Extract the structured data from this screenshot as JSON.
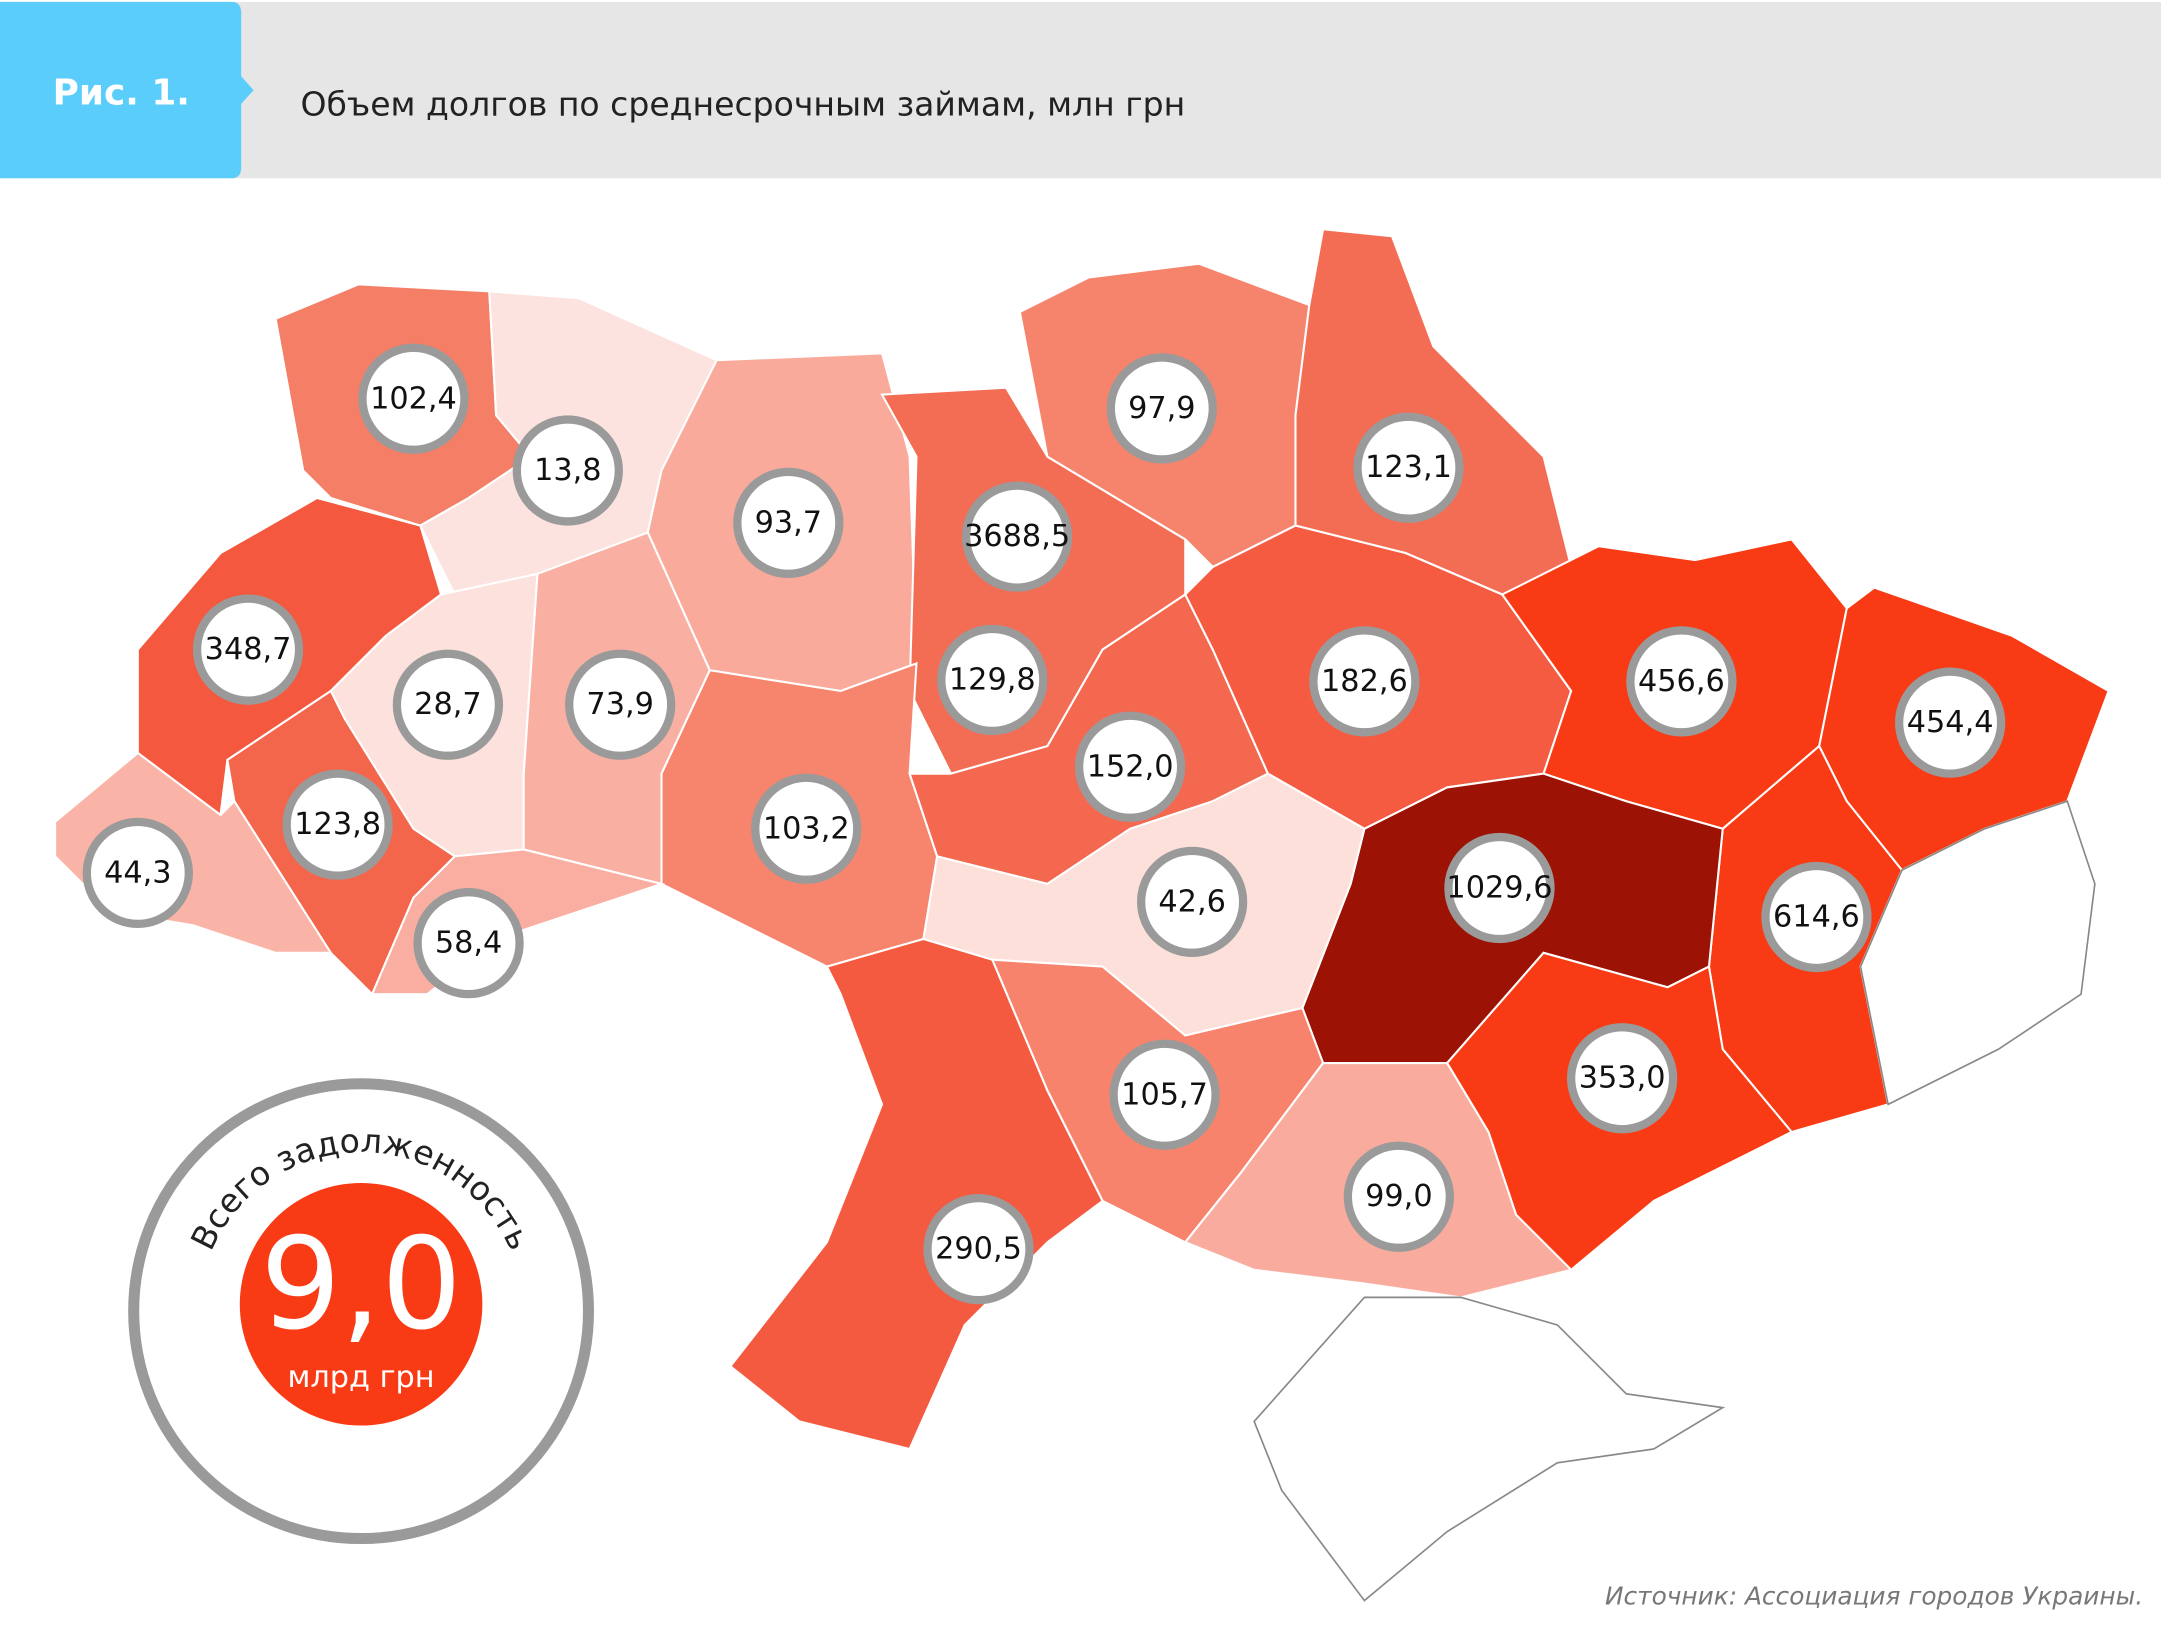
{
  "header": {
    "label": "Рис. 1.",
    "title": "Объем долгов по среднесрочным займам, млн грн"
  },
  "regions": [
    {
      "value": "102,4",
      "color": "#f47e66"
    },
    {
      "value": "13,8",
      "color": "#fde3df"
    },
    {
      "value": "93,7",
      "color": "#f9aa9a"
    },
    {
      "value": "129,8",
      "color": "#f36c54"
    },
    {
      "value": "3688,5",
      "color": "#ef5a40"
    },
    {
      "value": "97,9",
      "color": "#f6836b"
    },
    {
      "value": "123,1",
      "color": "#f36d55"
    },
    {
      "value": "348,7",
      "color": "#f4583e"
    },
    {
      "value": "28,7",
      "color": "#fde1dc"
    },
    {
      "value": "73,9",
      "color": "#f9b0a2"
    },
    {
      "value": "103,2",
      "color": "#f7846d"
    },
    {
      "value": "123,8",
      "color": "#f3664c"
    },
    {
      "value": "44,3",
      "color": "#f9b4a7"
    },
    {
      "value": "58,4",
      "color": "#f9aea1"
    },
    {
      "value": "152,0",
      "color": "#f3684f"
    },
    {
      "value": "182,6",
      "color": "#f45b41"
    },
    {
      "value": "456,6",
      "color": "#f93b15"
    },
    {
      "value": "454,4",
      "color": "#f93b15"
    },
    {
      "value": "614,6",
      "color": "#f93b15"
    },
    {
      "value": "1029,6",
      "color": "#9c1204"
    },
    {
      "value": "353,0",
      "color": "#f93b15"
    },
    {
      "value": "42,6",
      "color": "#fde0da"
    },
    {
      "value": "105,7",
      "color": "#f7836d"
    },
    {
      "value": "99,0",
      "color": "#f9ab9e"
    },
    {
      "value": "290,5",
      "color": "#f45a40"
    }
  ],
  "total": {
    "caption": "Всего задолженность",
    "value": "9,0",
    "unit": "млрд грн"
  },
  "source": "Источник: Ассоциация городов Украины."
}
